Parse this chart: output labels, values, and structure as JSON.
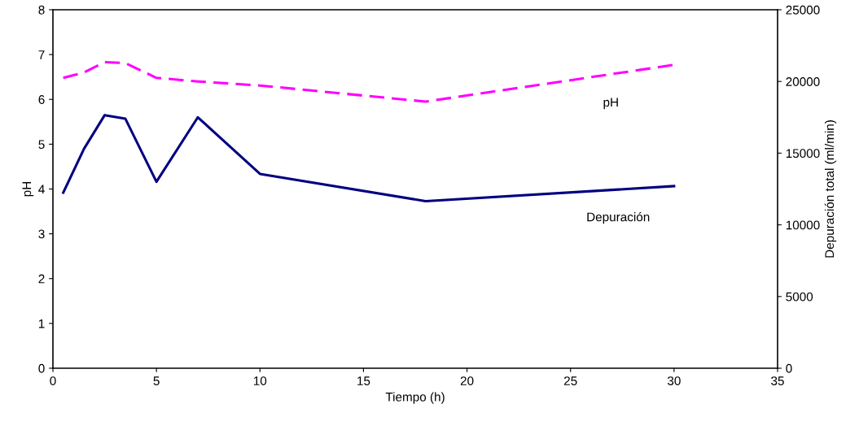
{
  "chart_data": {
    "type": "line",
    "xlabel": "Tiempo (h)",
    "ylabel": "pH",
    "y2label": "Depuración total (ml/min)",
    "xlim": [
      0,
      35
    ],
    "xticks": [
      0,
      5,
      10,
      15,
      20,
      25,
      30,
      35
    ],
    "ylim": [
      0,
      8
    ],
    "yticks": [
      0,
      1,
      2,
      3,
      4,
      5,
      6,
      7,
      8
    ],
    "y2lim": [
      0,
      25000
    ],
    "y2ticks": [
      0,
      5000,
      10000,
      15000,
      20000,
      25000
    ],
    "grid": false,
    "legend": false,
    "marker": "none",
    "series": [
      {
        "name": "pH",
        "color": "#ff00ff",
        "line_style": "dashed",
        "x": [
          0.5,
          1.5,
          2.5,
          3.5,
          5,
          7,
          10,
          18,
          30
        ],
        "values": [
          6.48,
          6.6,
          6.83,
          6.81,
          6.48,
          6.4,
          6.31,
          5.95,
          6.77
        ]
      },
      {
        "name": "Depuración",
        "color": "#000080",
        "line_style": "solid",
        "axis": "y2",
        "x": [
          0.5,
          1.5,
          2.5,
          3.5,
          5,
          7,
          10,
          18,
          30
        ],
        "values": [
          12250,
          15300,
          17650,
          17400,
          13000,
          17500,
          13550,
          11650,
          12700
        ]
      }
    ]
  }
}
